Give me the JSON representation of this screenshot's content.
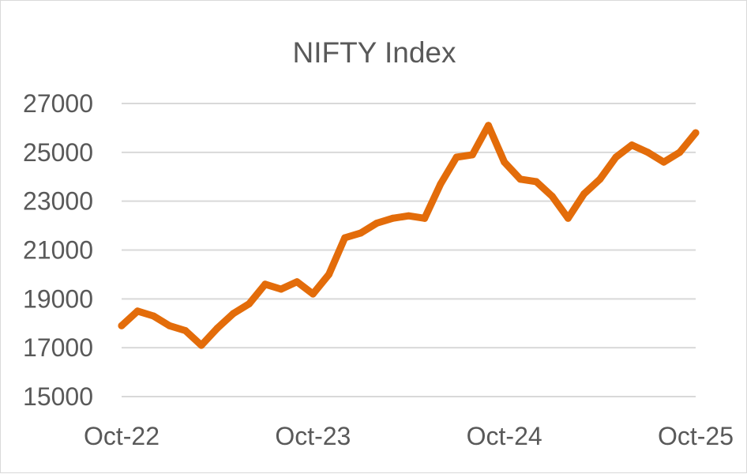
{
  "chart_data": {
    "type": "line",
    "title": "NIFTY Index",
    "xlabel": "",
    "ylabel": "",
    "ylim": [
      15000,
      27000
    ],
    "yticks": [
      27000,
      25000,
      23000,
      21000,
      19000,
      17000,
      15000
    ],
    "xticks": [
      "Oct-22",
      "Oct-23",
      "Oct-24",
      "Oct-25"
    ],
    "xlim": [
      "2022-10",
      "2025-10"
    ],
    "grid": true,
    "legend": "none",
    "colors": {
      "line": "#E36C0A",
      "grid": "#D9D9D9",
      "text": "#595959"
    },
    "series": [
      {
        "x": [
          "2022-10",
          "2022-11",
          "2022-12",
          "2023-01",
          "2023-02",
          "2023-03",
          "2023-04",
          "2023-05",
          "2023-06",
          "2023-07",
          "2023-08",
          "2023-09",
          "2023-10",
          "2023-11",
          "2023-12",
          "2024-01",
          "2024-02",
          "2024-03",
          "2024-04",
          "2024-05",
          "2024-06",
          "2024-07",
          "2024-08",
          "2024-09",
          "2024-10",
          "2024-11",
          "2024-12",
          "2025-01",
          "2025-02",
          "2025-03",
          "2025-04",
          "2025-05",
          "2025-06",
          "2025-07",
          "2025-08",
          "2025-09",
          "2025-10"
        ],
        "values": [
          17900,
          18500,
          18300,
          17900,
          17700,
          17100,
          17800,
          18400,
          18800,
          19600,
          19400,
          19700,
          19200,
          20000,
          21500,
          21700,
          22100,
          22300,
          22400,
          22300,
          23700,
          24800,
          24900,
          26100,
          24600,
          23900,
          23800,
          23200,
          22300,
          23300,
          23900,
          24800,
          25300,
          25000,
          24600,
          25000,
          25800
        ]
      }
    ]
  }
}
